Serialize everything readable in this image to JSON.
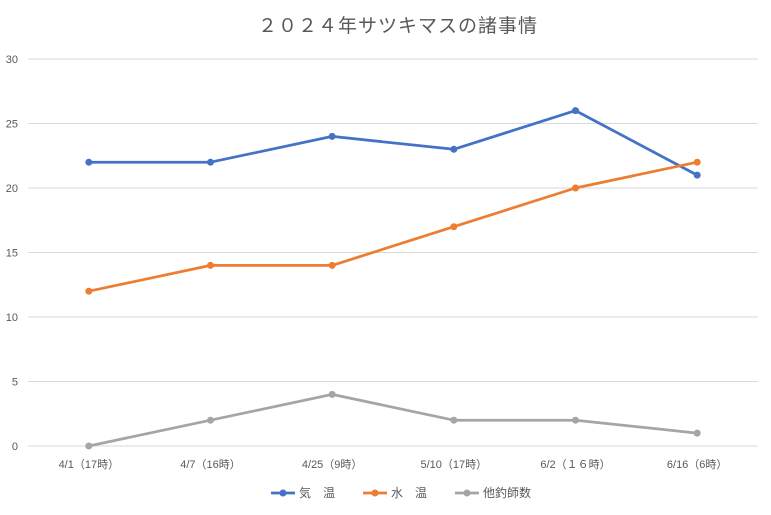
{
  "chart_data": {
    "type": "line",
    "title": "２０２４年サツキマスの諸事情",
    "categories": [
      "4/1（17時）",
      "4/7（16時）",
      "4/25（9時）",
      "5/10（17時）",
      "6/2（１６時）",
      "6/16（6時）"
    ],
    "series": [
      {
        "name": "気　温",
        "color": "#4472c4",
        "values": [
          22,
          22,
          24,
          23,
          26,
          21
        ]
      },
      {
        "name": "水　温",
        "color": "#ed7d31",
        "values": [
          12,
          14,
          14,
          17,
          20,
          22
        ]
      },
      {
        "name": "他釣師数",
        "color": "#a5a5a5",
        "values": [
          0,
          2,
          4,
          2,
          2,
          1
        ]
      }
    ],
    "yticks": [
      "0",
      "5",
      "10",
      "15",
      "20",
      "25",
      "30"
    ],
    "ylim": [
      0,
      30
    ],
    "grid": true,
    "legend_position": "bottom"
  }
}
